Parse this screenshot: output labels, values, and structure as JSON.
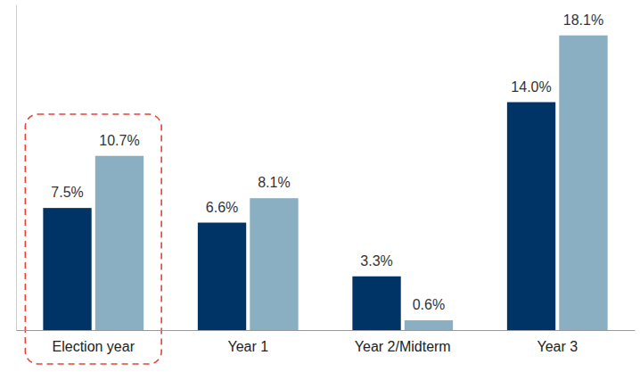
{
  "chart_data": {
    "type": "bar",
    "categories": [
      "Election year",
      "Year 1",
      "Year 2/Midterm",
      "Year 3"
    ],
    "series": [
      {
        "color": "#003466",
        "values": [
          7.5,
          6.6,
          3.3,
          14.0
        ],
        "value_labels": [
          "7.5%",
          "6.6%",
          "3.3%",
          "14.0%"
        ]
      },
      {
        "color": "#8aafc2",
        "values": [
          10.7,
          8.1,
          0.6,
          18.1
        ],
        "value_labels": [
          "10.7%",
          "8.1%",
          "0.6%",
          "18.1%"
        ]
      }
    ],
    "ylim": [
      0,
      20
    ],
    "data_labels": true,
    "tick_labels": "x",
    "grid": false
  }
}
